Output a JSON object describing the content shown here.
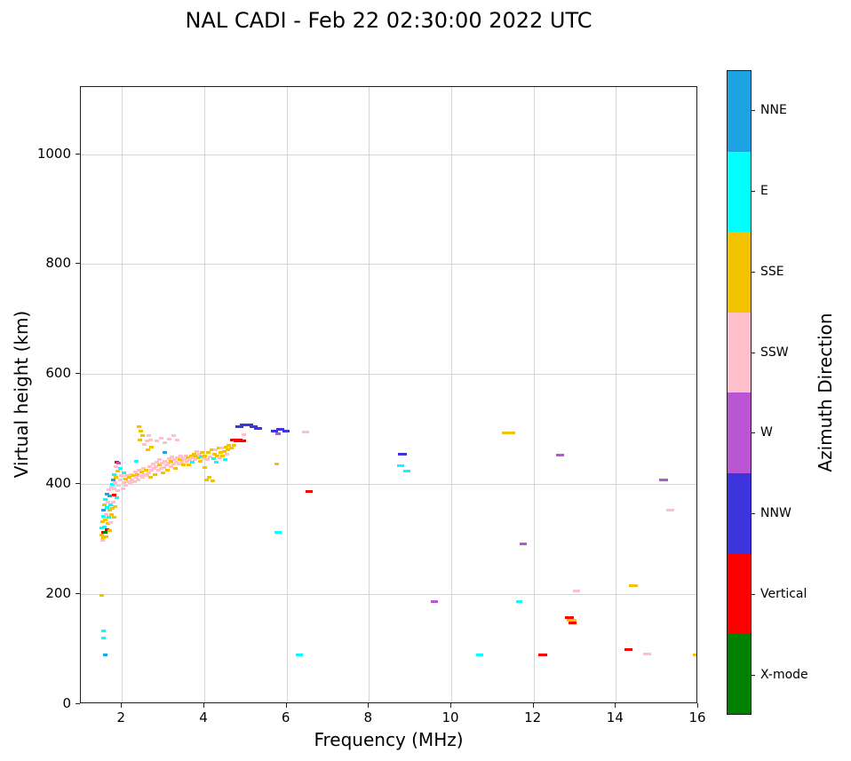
{
  "chart_data": {
    "type": "scatter",
    "title": "NAL CADI - Feb 22 02:30:00 2022 UTC",
    "xlabel": "Frequency (MHz)",
    "ylabel": "Virtual height (km)",
    "colorbar_label": "Azimuth Direction",
    "xlim": [
      1,
      16
    ],
    "ylim": [
      0,
      1122
    ],
    "x_ticks": [
      2,
      4,
      6,
      8,
      10,
      12,
      14,
      16
    ],
    "y_ticks": [
      0,
      200,
      400,
      600,
      800,
      1000
    ],
    "grid": true,
    "legend_position": "right-colorbar",
    "legend": [
      {
        "label": "NNE",
        "color": "#1ba3e2"
      },
      {
        "label": "E",
        "color": "#00ffff"
      },
      {
        "label": "SSE",
        "color": "#f3c300"
      },
      {
        "label": "SSW",
        "color": "#ffc0cb"
      },
      {
        "label": "W",
        "color": "#ba55d3"
      },
      {
        "label": "NNW",
        "color": "#3c35de"
      },
      {
        "label": "Vertical",
        "color": "#ff0000"
      },
      {
        "label": "X-mode",
        "color": "#008000"
      }
    ],
    "points_format": [
      "frequency_mhz",
      "virtual_height_km",
      "azimuth",
      "dash_width_px_optional"
    ],
    "points": [
      [
        1.5,
        308,
        "SSE"
      ],
      [
        1.5,
        320,
        "E"
      ],
      [
        1.52,
        298,
        "SSW"
      ],
      [
        1.52,
        332,
        "SSE"
      ],
      [
        1.54,
        312,
        "Vertical"
      ],
      [
        1.54,
        342,
        "E"
      ],
      [
        1.56,
        302,
        "SSE"
      ],
      [
        1.56,
        352,
        "NNE"
      ],
      [
        1.58,
        322,
        "E"
      ],
      [
        1.58,
        362,
        "SSE"
      ],
      [
        1.6,
        312,
        "X-mode"
      ],
      [
        1.6,
        335,
        "SSE"
      ],
      [
        1.6,
        372,
        "E"
      ],
      [
        1.62,
        305,
        "SSE"
      ],
      [
        1.62,
        345,
        "SSW"
      ],
      [
        1.64,
        318,
        "Vertical"
      ],
      [
        1.64,
        358,
        "E"
      ],
      [
        1.64,
        382,
        "NNE"
      ],
      [
        1.66,
        328,
        "SSE"
      ],
      [
        1.66,
        368,
        "SSW"
      ],
      [
        1.68,
        340,
        "E"
      ],
      [
        1.68,
        390,
        "SSW"
      ],
      [
        1.7,
        315,
        "SSE"
      ],
      [
        1.7,
        352,
        "SSE"
      ],
      [
        1.7,
        378,
        "NNE"
      ],
      [
        1.72,
        330,
        "SSW"
      ],
      [
        1.72,
        362,
        "E"
      ],
      [
        1.74,
        344,
        "SSE"
      ],
      [
        1.74,
        395,
        "SSW"
      ],
      [
        1.76,
        356,
        "SSE"
      ],
      [
        1.76,
        400,
        "E"
      ],
      [
        1.78,
        368,
        "SSW"
      ],
      [
        1.78,
        408,
        "NNE"
      ],
      [
        1.8,
        340,
        "SSE"
      ],
      [
        1.8,
        380,
        "Vertical"
      ],
      [
        1.82,
        392,
        "SSW"
      ],
      [
        1.82,
        418,
        "E"
      ],
      [
        1.84,
        360,
        "SSE"
      ],
      [
        1.84,
        402,
        "SSW"
      ],
      [
        1.86,
        412,
        "SSE"
      ],
      [
        1.86,
        432,
        "SSW"
      ],
      [
        1.88,
        376,
        "E"
      ],
      [
        1.88,
        440,
        "Vertical"
      ],
      [
        1.9,
        388,
        "SSW"
      ],
      [
        1.9,
        424,
        "SSE"
      ],
      [
        1.92,
        398,
        "SSW"
      ],
      [
        1.92,
        438,
        "W"
      ],
      [
        1.95,
        408,
        "SSW"
      ],
      [
        1.95,
        428,
        "E"
      ],
      [
        1.98,
        416,
        "SSW"
      ],
      [
        2.02,
        392,
        "SSW"
      ],
      [
        2.05,
        402,
        "SSW"
      ],
      [
        2.05,
        420,
        "E"
      ],
      [
        2.08,
        410,
        "SSE"
      ],
      [
        2.1,
        398,
        "SSW"
      ],
      [
        2.12,
        415,
        "SSW"
      ],
      [
        2.15,
        405,
        "SSW"
      ],
      [
        2.18,
        412,
        "SSE"
      ],
      [
        2.2,
        402,
        "SSW"
      ],
      [
        2.22,
        418,
        "SSW"
      ],
      [
        2.25,
        408,
        "SSW"
      ],
      [
        2.28,
        415,
        "SSE"
      ],
      [
        2.3,
        405,
        "SSW"
      ],
      [
        2.32,
        422,
        "SSW"
      ],
      [
        2.35,
        412,
        "SSW"
      ],
      [
        2.35,
        441,
        "E"
      ],
      [
        2.38,
        418,
        "SSE"
      ],
      [
        2.4,
        408,
        "SSW"
      ],
      [
        2.42,
        425,
        "SSW"
      ],
      [
        2.45,
        415,
        "SSW"
      ],
      [
        2.48,
        422,
        "SSE"
      ],
      [
        2.5,
        412,
        "SSW"
      ],
      [
        2.52,
        428,
        "SSW"
      ],
      [
        2.55,
        418,
        "SSW"
      ],
      [
        2.58,
        425,
        "SSE"
      ],
      [
        2.6,
        415,
        "SSW"
      ],
      [
        2.42,
        505,
        "SSE"
      ],
      [
        2.46,
        497,
        "SSE"
      ],
      [
        2.44,
        480,
        "SSE"
      ],
      [
        2.5,
        488,
        "SSE"
      ],
      [
        2.55,
        472,
        "SSW"
      ],
      [
        2.6,
        478,
        "SSW"
      ],
      [
        2.62,
        462,
        "SSE"
      ],
      [
        2.65,
        488,
        "SSW"
      ],
      [
        2.7,
        480,
        "SSW"
      ],
      [
        2.72,
        468,
        "SSE"
      ],
      [
        2.65,
        420,
        "SSW"
      ],
      [
        2.68,
        432,
        "SSW"
      ],
      [
        2.7,
        412,
        "SSE"
      ],
      [
        2.72,
        425,
        "SSW"
      ],
      [
        2.75,
        436,
        "SSW"
      ],
      [
        2.78,
        428,
        "SSW"
      ],
      [
        2.8,
        418,
        "SSE"
      ],
      [
        2.82,
        432,
        "SSW"
      ],
      [
        2.85,
        440,
        "SSW"
      ],
      [
        2.88,
        425,
        "SSW"
      ],
      [
        2.9,
        435,
        "SSE"
      ],
      [
        2.92,
        445,
        "SSW"
      ],
      [
        2.95,
        428,
        "SSW"
      ],
      [
        2.98,
        438,
        "SSW"
      ],
      [
        3.0,
        420,
        "SSE"
      ],
      [
        3.02,
        430,
        "SSW"
      ],
      [
        3.05,
        442,
        "SSW"
      ],
      [
        3.08,
        435,
        "SSW"
      ],
      [
        3.1,
        425,
        "SSE"
      ],
      [
        3.12,
        438,
        "SSW"
      ],
      [
        3.15,
        446,
        "SSW"
      ],
      [
        3.18,
        432,
        "SSW"
      ],
      [
        3.2,
        442,
        "SSE"
      ],
      [
        3.22,
        450,
        "SSW"
      ],
      [
        3.25,
        436,
        "SSW"
      ],
      [
        3.28,
        444,
        "SSW"
      ],
      [
        3.3,
        428,
        "SSE"
      ],
      [
        3.32,
        440,
        "SSW"
      ],
      [
        3.35,
        448,
        "SSW"
      ],
      [
        3.38,
        436,
        "SSW"
      ],
      [
        3.4,
        444,
        "SSE"
      ],
      [
        3.42,
        452,
        "SSW"
      ],
      [
        3.45,
        440,
        "SSW"
      ],
      [
        3.48,
        448,
        "SSW"
      ],
      [
        3.5,
        435,
        "SSE"
      ],
      [
        3.52,
        445,
        "SSW"
      ],
      [
        3.55,
        452,
        "SSW"
      ],
      [
        3.58,
        442,
        "SSW"
      ],
      [
        3.6,
        448,
        "SSE"
      ],
      [
        2.85,
        478,
        "SSW"
      ],
      [
        2.95,
        484,
        "SSW"
      ],
      [
        3.05,
        476,
        "SSW"
      ],
      [
        3.15,
        482,
        "SSW"
      ],
      [
        3.25,
        488,
        "SSW"
      ],
      [
        3.35,
        480,
        "SSW"
      ],
      [
        3.05,
        458,
        "NNE"
      ],
      [
        3.62,
        435,
        "SSE"
      ],
      [
        3.65,
        445,
        "SSW"
      ],
      [
        3.68,
        452,
        "SSE"
      ],
      [
        3.7,
        440,
        "E"
      ],
      [
        3.72,
        448,
        "SSW"
      ],
      [
        3.75,
        455,
        "SSE"
      ],
      [
        3.78,
        444,
        "SSW"
      ],
      [
        3.8,
        452,
        "SSE"
      ],
      [
        3.82,
        460,
        "SSW"
      ],
      [
        3.85,
        448,
        "SSE"
      ],
      [
        3.88,
        455,
        "SSW"
      ],
      [
        3.9,
        442,
        "SSE"
      ],
      [
        3.92,
        450,
        "E"
      ],
      [
        3.95,
        458,
        "SSE"
      ],
      [
        3.98,
        446,
        "SSW"
      ],
      [
        4.0,
        430,
        "SSE"
      ],
      [
        4.02,
        452,
        "SSE"
      ],
      [
        4.05,
        408,
        "SSE"
      ],
      [
        4.08,
        445,
        "SSW"
      ],
      [
        4.1,
        458,
        "SSE"
      ],
      [
        4.12,
        412,
        "SSE"
      ],
      [
        4.15,
        450,
        "SSW"
      ],
      [
        4.18,
        462,
        "SSE"
      ],
      [
        4.2,
        406,
        "SSE"
      ],
      [
        4.22,
        446,
        "E"
      ],
      [
        4.25,
        455,
        "SSE"
      ],
      [
        4.28,
        462,
        "SSW"
      ],
      [
        4.3,
        440,
        "E"
      ],
      [
        4.32,
        452,
        "SSE"
      ],
      [
        4.35,
        465,
        "SSE"
      ],
      [
        4.38,
        448,
        "SSW"
      ],
      [
        4.4,
        458,
        "SSE"
      ],
      [
        4.42,
        466,
        "SSW"
      ],
      [
        4.45,
        452,
        "SSE"
      ],
      [
        4.48,
        460,
        "SSE"
      ],
      [
        4.5,
        445,
        "E"
      ],
      [
        4.52,
        468,
        "SSE"
      ],
      [
        4.55,
        455,
        "SSW"
      ],
      [
        4.58,
        462,
        "SSE"
      ],
      [
        4.6,
        470,
        "SSE"
      ],
      [
        4.65,
        466,
        "SSE"
      ],
      [
        4.72,
        470,
        "SSE"
      ],
      [
        4.7,
        480,
        "Vertical",
        7
      ],
      [
        4.78,
        478,
        "Vertical",
        7
      ],
      [
        4.86,
        480,
        "Vertical",
        7
      ],
      [
        4.94,
        479,
        "Vertical",
        7
      ],
      [
        4.95,
        490,
        "SSW"
      ],
      [
        4.85,
        505,
        "NNW",
        9
      ],
      [
        4.97,
        507,
        "NNW",
        9
      ],
      [
        5.09,
        507,
        "NNW",
        9
      ],
      [
        5.2,
        505,
        "NNW",
        9
      ],
      [
        5.3,
        501,
        "NNW",
        9
      ],
      [
        5.7,
        497,
        "NNW",
        8
      ],
      [
        5.85,
        500,
        "NNW",
        9
      ],
      [
        5.99,
        497,
        "NNW",
        8
      ],
      [
        5.79,
        492,
        "W",
        6
      ],
      [
        5.75,
        436,
        "SSE",
        5
      ],
      [
        5.8,
        312,
        "E",
        8
      ],
      [
        6.45,
        495,
        "SSW",
        8
      ],
      [
        6.55,
        387,
        "Vertical",
        8
      ],
      [
        6.3,
        89,
        "E",
        8
      ],
      [
        8.82,
        455,
        "NNW",
        10
      ],
      [
        8.78,
        434,
        "E",
        8
      ],
      [
        8.92,
        424,
        "E",
        8
      ],
      [
        9.58,
        186,
        "W",
        8
      ],
      [
        10.7,
        89,
        "E",
        8
      ],
      [
        11.32,
        493,
        "SSE",
        9
      ],
      [
        11.48,
        493,
        "SSE",
        7
      ],
      [
        11.65,
        186,
        "E",
        7
      ],
      [
        11.75,
        291,
        "W",
        8
      ],
      [
        12.22,
        90,
        "Vertical",
        10
      ],
      [
        12.65,
        453,
        "W",
        9
      ],
      [
        12.88,
        158,
        "Vertical",
        10
      ],
      [
        12.92,
        153,
        "SSE",
        11
      ],
      [
        12.95,
        148,
        "Vertical",
        9
      ],
      [
        13.05,
        206,
        "SSW",
        8
      ],
      [
        14.42,
        215,
        "SSE",
        10
      ],
      [
        14.3,
        100,
        "Vertical",
        9
      ],
      [
        14.75,
        91,
        "SSW",
        9
      ],
      [
        15.15,
        408,
        "W",
        10
      ],
      [
        15.32,
        353,
        "SSW",
        9
      ],
      [
        15.95,
        89,
        "SSE",
        7
      ],
      [
        1.5,
        197,
        "SSE"
      ],
      [
        1.54,
        133,
        "E"
      ],
      [
        1.55,
        121,
        "E"
      ],
      [
        1.6,
        89,
        "NNE"
      ]
    ]
  }
}
